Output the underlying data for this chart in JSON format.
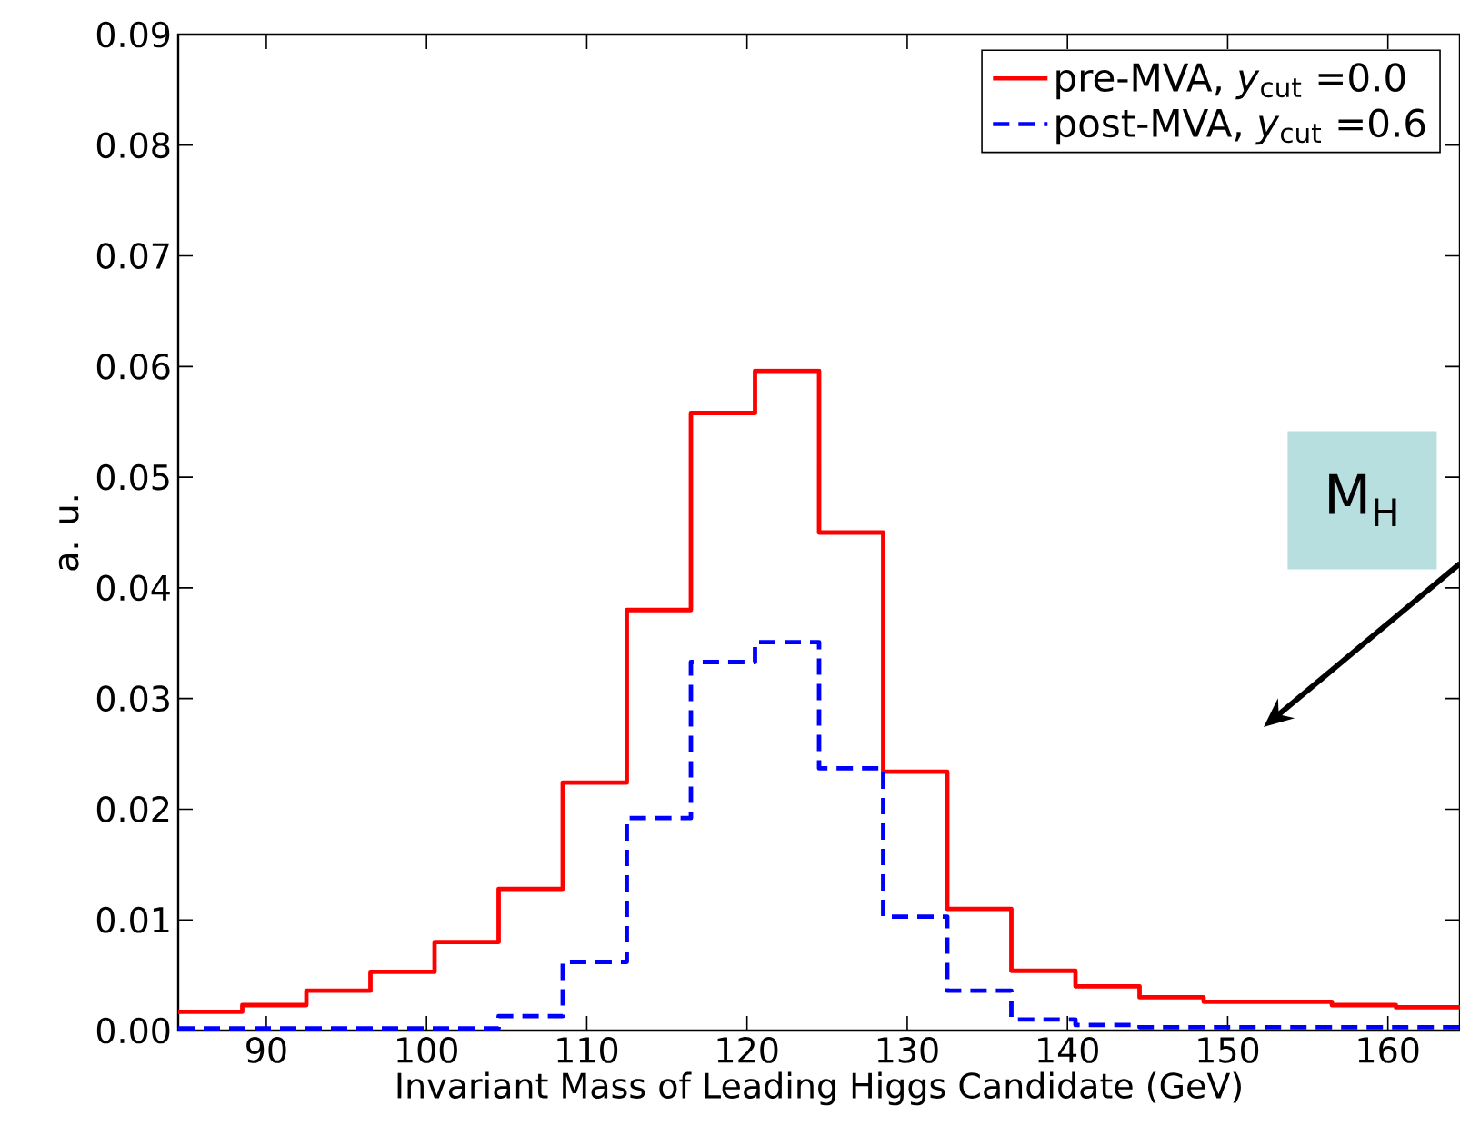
{
  "chart_data": {
    "type": "histogram",
    "xlabel": "Invariant Mass of Leading Higgs Candidate (GeV)",
    "ylabel": "a. u.",
    "bins": [
      84.5,
      88.5,
      92.5,
      96.5,
      100.5,
      104.5,
      108.5,
      112.5,
      116.5,
      120.5,
      124.5,
      128.5,
      132.5,
      136.5,
      140.5,
      144.5,
      148.5,
      152.5,
      156.5,
      160.5,
      164.5
    ],
    "series": [
      {
        "name": "pre-MVA, *y*$_{cut}$ =0.0",
        "color": "#ff0000",
        "line_style": "solid",
        "values": [
          0.0017,
          0.0023,
          0.0036,
          0.0053,
          0.008,
          0.0128,
          0.0224,
          0.038,
          0.0558,
          0.0596,
          0.045,
          0.0234,
          0.011,
          0.0054,
          0.004,
          0.003,
          0.0026,
          0.0026,
          0.0023,
          0.0021
        ]
      },
      {
        "name": "post-MVA, *y*$_{cut}$ =0.6",
        "color": "#0000ff",
        "line_style": "dashed",
        "values": [
          0.0002,
          0.0002,
          0.0002,
          0.0002,
          0.0002,
          0.0013,
          0.0062,
          0.0192,
          0.0333,
          0.0351,
          0.0237,
          0.0103,
          0.0036,
          0.001,
          0.0005,
          0.0003,
          0.0003,
          0.0003,
          0.0003,
          0.0003
        ]
      }
    ],
    "xlim": [
      84.5,
      164.5
    ],
    "ylim": [
      0,
      0.09
    ],
    "xticks": [
      90,
      100,
      110,
      120,
      130,
      140,
      150,
      160
    ],
    "yticks": [
      {
        "value": 0,
        "label": "0.00"
      },
      {
        "value": 0.01,
        "label": "0.01"
      },
      {
        "value": 0.02,
        "label": "0.02"
      },
      {
        "value": 0.03,
        "label": "0.03"
      },
      {
        "value": 0.04,
        "label": "0.04"
      },
      {
        "value": 0.05,
        "label": "0.05"
      },
      {
        "value": 0.06,
        "label": "0.06"
      },
      {
        "value": 0.07,
        "label": "0.07"
      },
      {
        "value": 0.08,
        "label": "0.08"
      },
      {
        "value": 0.09,
        "label": "0.09"
      }
    ],
    "annotations": [
      "M$_{H}$"
    ],
    "legend": "top right"
  }
}
